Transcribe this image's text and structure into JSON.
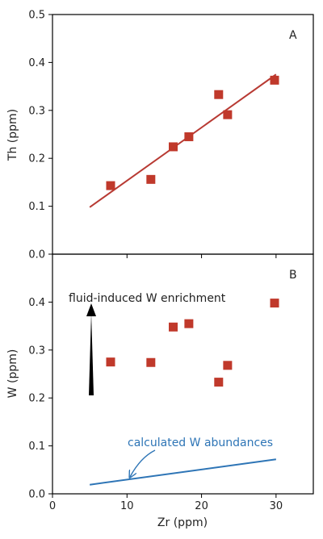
{
  "chart_data": [
    {
      "type": "scatter",
      "panel_label": "A",
      "xlabel": "",
      "ylabel": "Th (ppm)",
      "xlim": [
        0,
        35
      ],
      "ylim": [
        0,
        0.5
      ],
      "xticks": [
        0,
        10,
        20,
        30
      ],
      "yticks": [
        "0.0",
        "0.1",
        "0.2",
        "0.3",
        "0.4",
        "0.5"
      ],
      "grid": false,
      "colors": {
        "marker": "#c0392b",
        "line": "#b83a33"
      },
      "series": [
        {
          "points": [
            {
              "x": 7.8,
              "y": 0.143
            },
            {
              "x": 13.2,
              "y": 0.156
            },
            {
              "x": 16.2,
              "y": 0.224
            },
            {
              "x": 18.3,
              "y": 0.245
            },
            {
              "x": 22.3,
              "y": 0.333
            },
            {
              "x": 23.5,
              "y": 0.291
            },
            {
              "x": 29.8,
              "y": 0.363
            }
          ]
        }
      ],
      "fit_line": {
        "x": [
          5,
          30
        ],
        "y": [
          0.098,
          0.375
        ]
      }
    },
    {
      "type": "scatter",
      "panel_label": "B",
      "xlabel": "Zr (ppm)",
      "ylabel": "W (ppm)",
      "xlim": [
        0,
        35
      ],
      "ylim": [
        0,
        0.5
      ],
      "xticks": [
        "0",
        "10",
        "20",
        "30"
      ],
      "yticks": [
        "0.0",
        "0.1",
        "0.2",
        "0.3",
        "0.4"
      ],
      "grid": false,
      "colors": {
        "marker": "#c0392b",
        "calc_line": "#2e75b6",
        "arrow": "#000000"
      },
      "series": [
        {
          "points": [
            {
              "x": 7.8,
              "y": 0.275
            },
            {
              "x": 13.2,
              "y": 0.274
            },
            {
              "x": 16.2,
              "y": 0.348
            },
            {
              "x": 18.3,
              "y": 0.355
            },
            {
              "x": 22.3,
              "y": 0.233
            },
            {
              "x": 23.5,
              "y": 0.268
            },
            {
              "x": 29.8,
              "y": 0.398
            }
          ]
        }
      ],
      "calculated_line": {
        "x": [
          5,
          30
        ],
        "y": [
          0.019,
          0.072
        ]
      },
      "annotations": {
        "enrichment_text": "fluid-induced W enrichment",
        "calculated_text": "calculated W abundances"
      }
    }
  ]
}
